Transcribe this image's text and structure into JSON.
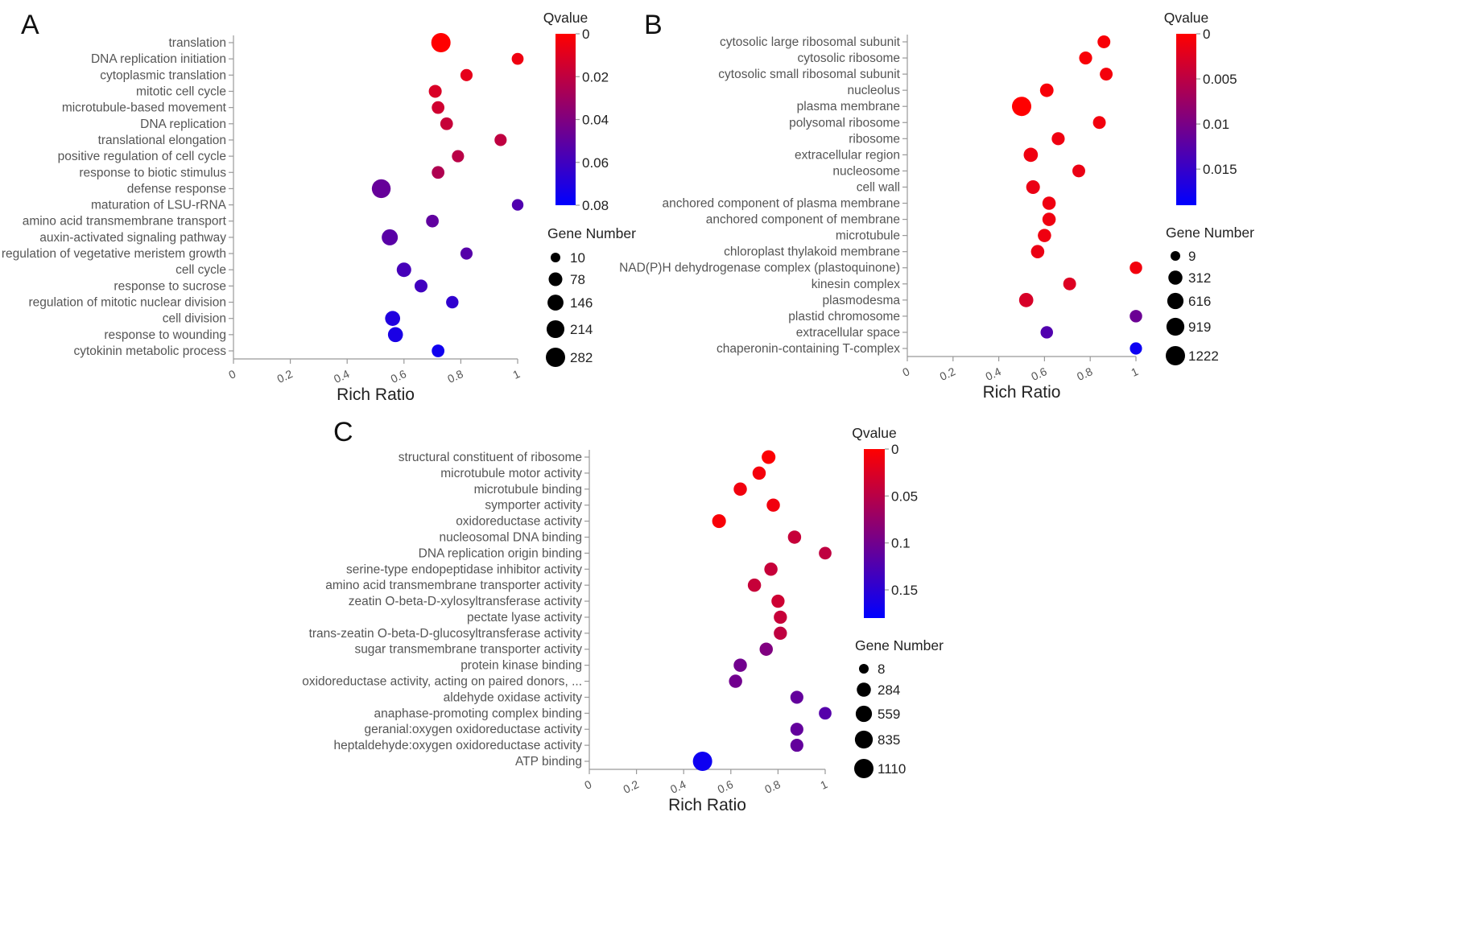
{
  "chart_data": [
    {
      "panel": "A",
      "type": "scatter",
      "xlabel": "Rich Ratio",
      "xlim": [
        0,
        1
      ],
      "xticks": [
        0,
        0.2,
        0.4,
        0.6,
        0.8,
        1
      ],
      "xtick_labels": [
        "0",
        "0.2",
        "0.4",
        "0.6",
        "0.8",
        "1"
      ],
      "color_legend": {
        "title": "Qvalue",
        "min": 0,
        "max": 0.08,
        "ticks": [
          "0",
          "0.02",
          "0.04",
          "0.06",
          "0.08"
        ],
        "low_color": "#ff0000",
        "high_color": "#0000ff"
      },
      "size_legend": {
        "title": "Gene Number",
        "values": [
          10,
          78,
          146,
          214,
          282
        ]
      },
      "points": [
        {
          "term": "translation",
          "rich_ratio": 0.73,
          "qvalue": 0.0,
          "genes": 282
        },
        {
          "term": "DNA replication initiation",
          "rich_ratio": 1.0,
          "qvalue": 0.005,
          "genes": 40
        },
        {
          "term": "cytoplasmic translation",
          "rich_ratio": 0.82,
          "qvalue": 0.008,
          "genes": 45
        },
        {
          "term": "mitotic cell cycle",
          "rich_ratio": 0.71,
          "qvalue": 0.012,
          "genes": 60
        },
        {
          "term": "microtubule-based movement",
          "rich_ratio": 0.72,
          "qvalue": 0.015,
          "genes": 55
        },
        {
          "term": "DNA replication",
          "rich_ratio": 0.75,
          "qvalue": 0.018,
          "genes": 55
        },
        {
          "term": "translational elongation",
          "rich_ratio": 0.94,
          "qvalue": 0.02,
          "genes": 45
        },
        {
          "term": "positive regulation of cell cycle",
          "rich_ratio": 0.79,
          "qvalue": 0.022,
          "genes": 45
        },
        {
          "term": "response to biotic stimulus",
          "rich_ratio": 0.72,
          "qvalue": 0.025,
          "genes": 55
        },
        {
          "term": "defense response",
          "rich_ratio": 0.52,
          "qvalue": 0.048,
          "genes": 260
        },
        {
          "term": "maturation of LSU-rRNA",
          "rich_ratio": 1.0,
          "qvalue": 0.055,
          "genes": 35
        },
        {
          "term": "amino acid transmembrane transport",
          "rich_ratio": 0.7,
          "qvalue": 0.05,
          "genes": 55
        },
        {
          "term": "auxin-activated signaling pathway",
          "rich_ratio": 0.55,
          "qvalue": 0.052,
          "genes": 150
        },
        {
          "term": "regulation of vegetative meristem growth",
          "rich_ratio": 0.82,
          "qvalue": 0.053,
          "genes": 45
        },
        {
          "term": "cell cycle",
          "rich_ratio": 0.6,
          "qvalue": 0.058,
          "genes": 100
        },
        {
          "term": "response to sucrose",
          "rich_ratio": 0.66,
          "qvalue": 0.06,
          "genes": 60
        },
        {
          "term": "regulation of mitotic nuclear division",
          "rich_ratio": 0.77,
          "qvalue": 0.065,
          "genes": 50
        },
        {
          "term": "cell division",
          "rich_ratio": 0.56,
          "qvalue": 0.07,
          "genes": 115
        },
        {
          "term": "response to wounding",
          "rich_ratio": 0.57,
          "qvalue": 0.072,
          "genes": 115
        },
        {
          "term": "cytokinin metabolic process",
          "rich_ratio": 0.72,
          "qvalue": 0.075,
          "genes": 55
        }
      ]
    },
    {
      "panel": "B",
      "type": "scatter",
      "xlabel": "Rich Ratio",
      "xlim": [
        0,
        1
      ],
      "xticks": [
        0,
        0.2,
        0.4,
        0.6,
        0.8,
        1
      ],
      "xtick_labels": [
        "0",
        "0.2",
        "0.4",
        "0.6",
        "0.8",
        "1"
      ],
      "color_legend": {
        "title": "Qvalue",
        "min": 0,
        "max": 0.019,
        "ticks": [
          "0",
          "0.005",
          "0.01",
          "0.015"
        ],
        "tick_values": [
          0,
          0.005,
          0.01,
          0.015
        ],
        "low_color": "#ff0000",
        "high_color": "#0000ff"
      },
      "size_legend": {
        "title": "Gene Number",
        "values": [
          9,
          312,
          616,
          919,
          1222
        ]
      },
      "points": [
        {
          "term": "cytosolic large ribosomal subunit",
          "rich_ratio": 0.86,
          "qvalue": 0.0005,
          "genes": 180
        },
        {
          "term": "cytosolic ribosome",
          "rich_ratio": 0.78,
          "qvalue": 0.0005,
          "genes": 200
        },
        {
          "term": "cytosolic small ribosomal subunit",
          "rich_ratio": 0.87,
          "qvalue": 0.0008,
          "genes": 180
        },
        {
          "term": "nucleolus",
          "rich_ratio": 0.61,
          "qvalue": 0.0006,
          "genes": 250
        },
        {
          "term": "plasma membrane",
          "rich_ratio": 0.5,
          "qvalue": 0.0,
          "genes": 1222
        },
        {
          "term": "polysomal ribosome",
          "rich_ratio": 0.84,
          "qvalue": 0.001,
          "genes": 180
        },
        {
          "term": "ribosome",
          "rich_ratio": 0.66,
          "qvalue": 0.0012,
          "genes": 200
        },
        {
          "term": "extracellular region",
          "rich_ratio": 0.54,
          "qvalue": 0.0012,
          "genes": 330
        },
        {
          "term": "nucleosome",
          "rich_ratio": 0.75,
          "qvalue": 0.0015,
          "genes": 180
        },
        {
          "term": "cell wall",
          "rich_ratio": 0.55,
          "qvalue": 0.0015,
          "genes": 270
        },
        {
          "term": "anchored component of plasma membrane",
          "rich_ratio": 0.62,
          "qvalue": 0.0012,
          "genes": 230
        },
        {
          "term": "anchored component of membrane",
          "rich_ratio": 0.62,
          "qvalue": 0.0012,
          "genes": 230
        },
        {
          "term": "microtubule",
          "rich_ratio": 0.6,
          "qvalue": 0.0012,
          "genes": 230
        },
        {
          "term": "chloroplast thylakoid membrane",
          "rich_ratio": 0.57,
          "qvalue": 0.0015,
          "genes": 230
        },
        {
          "term": "NAD(P)H dehydrogenase complex (plastoquinone)",
          "rich_ratio": 1.0,
          "qvalue": 0.001,
          "genes": 150
        },
        {
          "term": "kinesin complex",
          "rich_ratio": 0.71,
          "qvalue": 0.0025,
          "genes": 180
        },
        {
          "term": "plasmodesma",
          "rich_ratio": 0.52,
          "qvalue": 0.003,
          "genes": 330
        },
        {
          "term": "plastid chromosome",
          "rich_ratio": 1.0,
          "qvalue": 0.011,
          "genes": 150
        },
        {
          "term": "extracellular space",
          "rich_ratio": 0.61,
          "qvalue": 0.013,
          "genes": 150
        },
        {
          "term": "chaperonin-containing T-complex",
          "rich_ratio": 1.0,
          "qvalue": 0.018,
          "genes": 130
        }
      ]
    },
    {
      "panel": "C",
      "type": "scatter",
      "xlabel": "Rich Ratio",
      "xlim": [
        0,
        1
      ],
      "xticks": [
        0,
        0.2,
        0.4,
        0.6,
        0.8,
        1
      ],
      "xtick_labels": [
        "0",
        "0.2",
        "0.4",
        "0.6",
        "0.8",
        "1"
      ],
      "color_legend": {
        "title": "Qvalue",
        "min": 0,
        "max": 0.18,
        "ticks": [
          "0",
          "0.05",
          "0.1",
          "0.15"
        ],
        "tick_values": [
          0,
          0.05,
          0.1,
          0.15
        ],
        "low_color": "#ff0000",
        "high_color": "#0000ff"
      },
      "size_legend": {
        "title": "Gene Number",
        "values": [
          8,
          284,
          559,
          835,
          1110
        ]
      },
      "points": [
        {
          "term": "structural constituent of ribosome",
          "rich_ratio": 0.76,
          "qvalue": 0.002,
          "genes": 250
        },
        {
          "term": "microtubule motor activity",
          "rich_ratio": 0.72,
          "qvalue": 0.008,
          "genes": 200
        },
        {
          "term": "microtubule binding",
          "rich_ratio": 0.64,
          "qvalue": 0.01,
          "genes": 200
        },
        {
          "term": "symporter activity",
          "rich_ratio": 0.78,
          "qvalue": 0.01,
          "genes": 200
        },
        {
          "term": "oxidoreductase activity",
          "rich_ratio": 0.55,
          "qvalue": 0.005,
          "genes": 250
        },
        {
          "term": "nucleosomal DNA binding",
          "rich_ratio": 0.87,
          "qvalue": 0.04,
          "genes": 200
        },
        {
          "term": "DNA replication origin binding",
          "rich_ratio": 1.0,
          "qvalue": 0.045,
          "genes": 150
        },
        {
          "term": "serine-type endopeptidase inhibitor activity",
          "rich_ratio": 0.77,
          "qvalue": 0.04,
          "genes": 200
        },
        {
          "term": "amino acid transmembrane transporter activity",
          "rich_ratio": 0.7,
          "qvalue": 0.04,
          "genes": 200
        },
        {
          "term": "zeatin O-beta-D-xylosyltransferase activity",
          "rich_ratio": 0.8,
          "qvalue": 0.035,
          "genes": 190
        },
        {
          "term": "pectate lyase activity",
          "rich_ratio": 0.81,
          "qvalue": 0.04,
          "genes": 190
        },
        {
          "term": "trans-zeatin O-beta-D-glucosyltransferase activity",
          "rich_ratio": 0.81,
          "qvalue": 0.045,
          "genes": 190
        },
        {
          "term": "sugar transmembrane transporter activity",
          "rich_ratio": 0.75,
          "qvalue": 0.09,
          "genes": 200
        },
        {
          "term": "protein kinase binding",
          "rich_ratio": 0.64,
          "qvalue": 0.1,
          "genes": 200
        },
        {
          "term": "oxidoreductase activity, acting on paired donors, ...",
          "rich_ratio": 0.62,
          "qvalue": 0.1,
          "genes": 200
        },
        {
          "term": "aldehyde oxidase activity",
          "rich_ratio": 0.88,
          "qvalue": 0.11,
          "genes": 180
        },
        {
          "term": "anaphase-promoting complex binding",
          "rich_ratio": 1.0,
          "qvalue": 0.12,
          "genes": 150
        },
        {
          "term": "geranial:oxygen oxidoreductase activity",
          "rich_ratio": 0.88,
          "qvalue": 0.11,
          "genes": 180
        },
        {
          "term": "heptaldehyde:oxygen oxidoreductase activity",
          "rich_ratio": 0.88,
          "qvalue": 0.11,
          "genes": 180
        },
        {
          "term": "ATP binding",
          "rich_ratio": 0.48,
          "qvalue": 0.17,
          "genes": 1110
        }
      ]
    }
  ]
}
